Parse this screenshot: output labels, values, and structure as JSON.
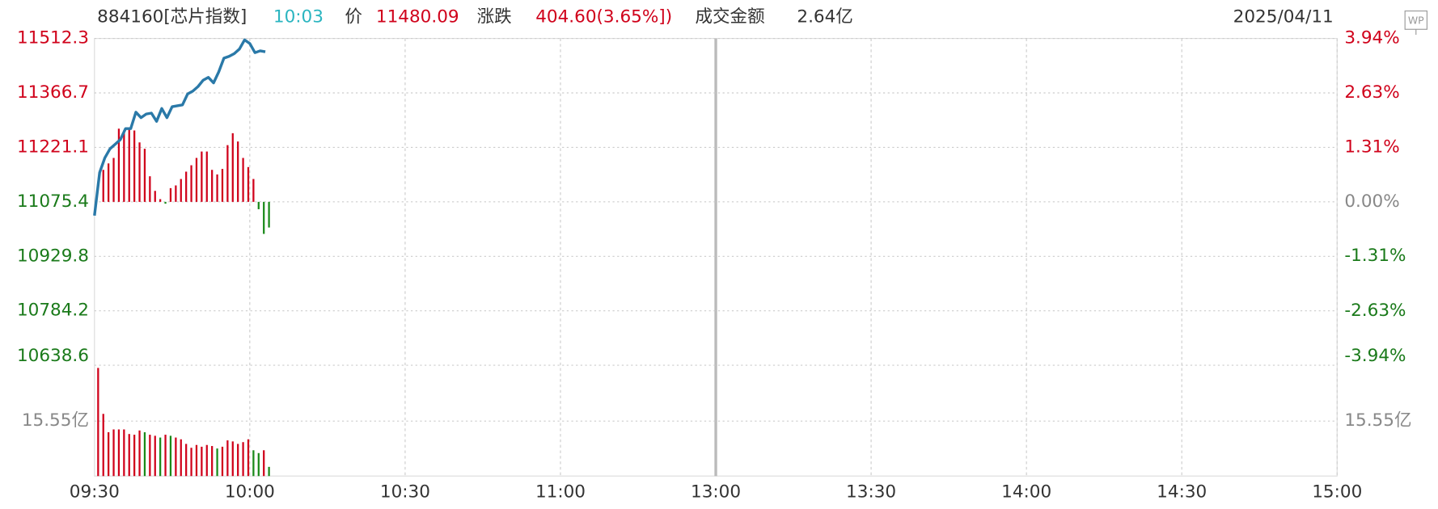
{
  "header": {
    "code": "884160[芯片指数]",
    "time": "10:03",
    "price_label": "价",
    "price": "11480.09",
    "change_label": "涨跌",
    "change": "404.60(3.65%])",
    "amount_label": "成交金额",
    "amount": "2.64亿",
    "date": "2025/04/11",
    "badge": "WP"
  },
  "chart_data": {
    "type": "line",
    "x": [
      0,
      1,
      2,
      3,
      4,
      5,
      6,
      7,
      8,
      9,
      10,
      11,
      12,
      13,
      14,
      15,
      16,
      17,
      18,
      19,
      20,
      21,
      22,
      23,
      24,
      25,
      26,
      27,
      28,
      29,
      30,
      31,
      32,
      33
    ],
    "xlim": [
      0,
      240
    ],
    "xticks": [
      {
        "value": 0,
        "label": "09:30"
      },
      {
        "value": 30,
        "label": "10:00"
      },
      {
        "value": 60,
        "label": "10:30"
      },
      {
        "value": 90,
        "label": "11:00"
      },
      {
        "value": 120,
        "label": "13:00"
      },
      {
        "value": 150,
        "label": "13:30"
      },
      {
        "value": 180,
        "label": "14:00"
      },
      {
        "value": 210,
        "label": "14:30"
      },
      {
        "value": 240,
        "label": "15:00"
      }
    ],
    "ylim": [
      10638.6,
      11512.3
    ],
    "yticks": [
      11512.3,
      11366.7,
      11221.1,
      11075.4,
      10929.8,
      10784.2,
      10638.6
    ],
    "y2lim": [
      -3.94,
      3.94
    ],
    "y2ticks": [
      {
        "value": 3.94,
        "label": "3.94%"
      },
      {
        "value": 2.63,
        "label": "2.63%"
      },
      {
        "value": 1.31,
        "label": "1.31%"
      },
      {
        "value": 0,
        "label": "0.00%"
      },
      {
        "value": -1.31,
        "label": "-1.31%"
      },
      {
        "value": -2.63,
        "label": "-2.63%"
      },
      {
        "value": -3.94,
        "label": "-3.94%"
      }
    ],
    "grid": true,
    "price": {
      "color": "#2a79a8",
      "values": [
        11038.7,
        11153.7,
        11192.9,
        11217.3,
        11229.6,
        11241.8,
        11271.2,
        11271.2,
        11315.2,
        11300.5,
        11310.3,
        11312.7,
        11290.7,
        11325,
        11300.5,
        11329.9,
        11332.3,
        11334.8,
        11364.1,
        11371.5,
        11383.7,
        11400.8,
        11408.2,
        11393.5,
        11422.9,
        11459.6,
        11464.5,
        11471.8,
        11484,
        11508.5,
        11498.7,
        11474.3,
        11479.2,
        11476.7
      ]
    },
    "bars": {
      "up_color": "#d0021b",
      "down_color": "#1a8a1a",
      "values": [
        11075.4,
        11161,
        11178.2,
        11192.9,
        11271.2,
        11266.3,
        11271.2,
        11266.3,
        11234.5,
        11217.3,
        11143.9,
        11104.8,
        11082.7,
        11070.5,
        11112.1,
        11119.4,
        11136.6,
        11156.2,
        11173.3,
        11192.9,
        11210,
        11210,
        11161,
        11148.8,
        11163.5,
        11227.1,
        11258.9,
        11236.9,
        11192.9,
        11168.4,
        11136.6,
        11055.8,
        10989.8,
        11006.9
      ]
    },
    "volume": {
      "ylim": [
        0,
        31.1
      ],
      "yticks": [
        {
          "value": 15.55,
          "label": "15.55亿"
        }
      ],
      "values": [
        30.6,
        17.6,
        12.4,
        13.2,
        13.2,
        13.2,
        11.9,
        11.7,
        12.9,
        12.4,
        11.7,
        11.4,
        10.9,
        11.7,
        11.4,
        10.9,
        10.4,
        9.1,
        8.0,
        8.8,
        8.3,
        8.8,
        8.5,
        7.8,
        8.3,
        10.1,
        9.8,
        9.1,
        9.6,
        10.4,
        7.3,
        6.5,
        7.3,
        2.6
      ]
    }
  }
}
